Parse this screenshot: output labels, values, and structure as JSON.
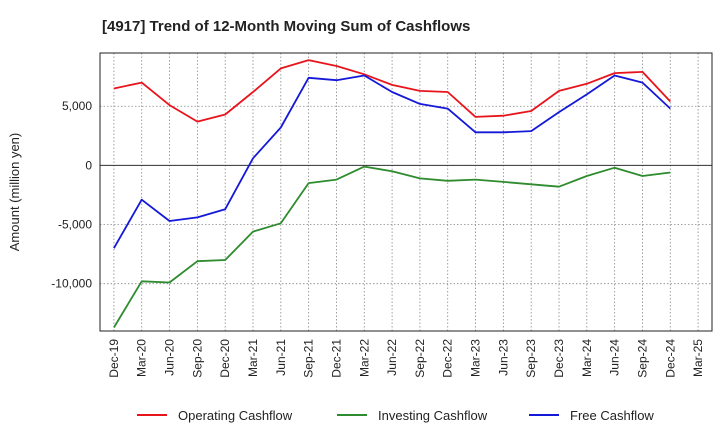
{
  "chart_data": {
    "type": "line",
    "title": "[4917]  Trend of 12-Month Moving Sum of Cashflows",
    "xlabel": "",
    "ylabel": "Amount (million yen)",
    "categories": [
      "Dec-19",
      "Mar-20",
      "Jun-20",
      "Sep-20",
      "Dec-20",
      "Mar-21",
      "Jun-21",
      "Sep-21",
      "Dec-21",
      "Mar-22",
      "Jun-22",
      "Sep-22",
      "Dec-22",
      "Mar-23",
      "Jun-23",
      "Sep-23",
      "Dec-23",
      "Mar-24",
      "Jun-24",
      "Sep-24",
      "Dec-24",
      "Mar-25"
    ],
    "ylim": [
      -14000,
      9500
    ],
    "yticks": [
      -10000,
      -5000,
      0,
      5000
    ],
    "ytick_labels": [
      "-10,000",
      "-5,000",
      "0",
      "5,000"
    ],
    "grid": true,
    "legend_position": "bottom",
    "series": [
      {
        "name": "Operating Cashflow",
        "color": "#e8141c",
        "values": [
          6500,
          7000,
          5100,
          3700,
          4300,
          6200,
          8200,
          8900,
          8400,
          7700,
          6800,
          6300,
          6200,
          4100,
          4200,
          4600,
          6300,
          6900,
          7800,
          7900,
          5400,
          null
        ]
      },
      {
        "name": "Investing Cashflow",
        "color": "#2e8b2e",
        "values": [
          -13700,
          -9800,
          -9900,
          -8100,
          -8000,
          -5600,
          -4900,
          -1500,
          -1200,
          -100,
          -500,
          -1100,
          -1300,
          -1200,
          -1400,
          -1600,
          -1800,
          -900,
          -200,
          -900,
          -600,
          null
        ]
      },
      {
        "name": "Free Cashflow",
        "color": "#1418d8",
        "values": [
          -7000,
          -2900,
          -4700,
          -4400,
          -3700,
          600,
          3200,
          7400,
          7200,
          7600,
          6200,
          5200,
          4800,
          2800,
          2800,
          2900,
          4500,
          6000,
          7600,
          7000,
          4800,
          null
        ]
      }
    ]
  }
}
